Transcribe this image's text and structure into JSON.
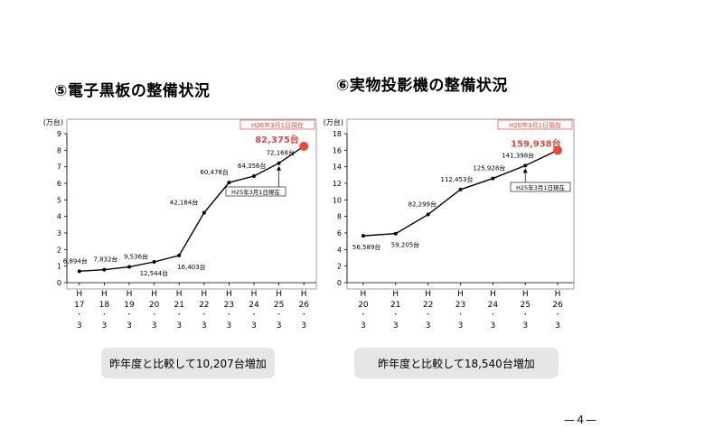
{
  "page": {
    "page_number": "—４—"
  },
  "chart_data": [
    {
      "type": "line",
      "heading": "⑤電子黒板の整備状況",
      "ylabel": "(万台)",
      "ylim": [
        0,
        9
      ],
      "yticks": [
        "0",
        "1",
        "2",
        "3",
        "4",
        "5",
        "6",
        "7",
        "8",
        "9"
      ],
      "date_badge": "H26年3月1日現在",
      "categories": [
        "H17・3",
        "H18・3",
        "H19・3",
        "H20・3",
        "H21・3",
        "H22・3",
        "H23・3",
        "H24・3",
        "H25・3",
        "H26・3"
      ],
      "series": [
        {
          "values": [
            6894,
            7832,
            9536,
            12544,
            16403,
            42184,
            60478,
            64356,
            72168,
            82375
          ],
          "labels": [
            "6,894台",
            "7,832台",
            "9,536台",
            "12,544台",
            "16,403台",
            "42,184台",
            "60,478台",
            "64,356台",
            "72,168台",
            "82,375台"
          ]
        }
      ],
      "annotation": "H25年3月1日現在",
      "highlight_color": "#e8473a",
      "summary": "昨年度と比較して10,207台増加"
    },
    {
      "type": "line",
      "heading": "⑥実物投影機の整備状況",
      "ylabel": "(万台)",
      "ylim": [
        0,
        18
      ],
      "yticks": [
        "0",
        "2",
        "4",
        "6",
        "8",
        "10",
        "12",
        "14",
        "16",
        "18"
      ],
      "date_badge": "H26年3月1日現在",
      "categories": [
        "H20・3",
        "H21・3",
        "H22・3",
        "H23・3",
        "H24・3",
        "H25・3",
        "H26・3"
      ],
      "series": [
        {
          "values": [
            56589,
            59205,
            82299,
            112453,
            125928,
            141398,
            159938
          ],
          "labels": [
            "56,589台",
            "59,205台",
            "82,299台",
            "112,453台",
            "125,928台",
            "141,398台",
            "159,938台"
          ]
        }
      ],
      "annotation": "H25年3月1日現在",
      "highlight_color": "#e8473a",
      "summary": "昨年度と比較して18,540台増加"
    }
  ]
}
